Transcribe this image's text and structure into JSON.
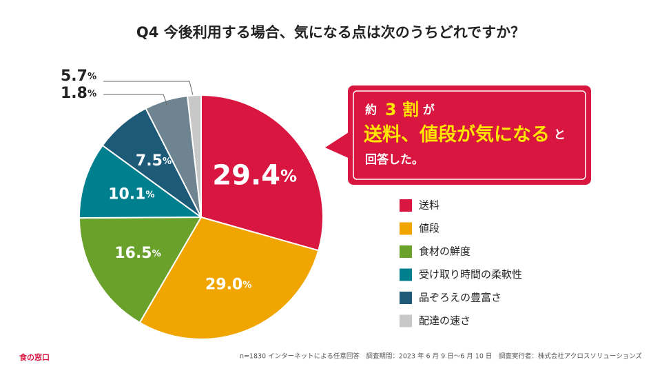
{
  "chart_data": {
    "type": "pie",
    "title": "Q4 今後利用する場合、気になる点は次のうちどれですか？",
    "categories": [
      "送料",
      "値段",
      "食材の鮮度",
      "受け取り時間の柔軟性",
      "品ぞろえの豊富さ",
      null,
      "配達の速さ"
    ],
    "values": [
      29.4,
      29.0,
      16.5,
      10.1,
      7.5,
      5.7,
      1.8
    ],
    "value_labels": [
      "29.4",
      "29.0",
      "16.5",
      "10.1",
      "7.5",
      "5.7",
      "1.8"
    ],
    "unit": "%",
    "colors": [
      "#d8163f",
      "#f0a500",
      "#6aa12a",
      "#00808f",
      "#1c5a78",
      "#6e8591",
      "#c8c8c8"
    ],
    "callout": [
      "約",
      "3 割",
      "が",
      "送料、値段が気になる",
      "と",
      "回答した。"
    ],
    "note": "n=1830 インターネットによる任意回答　調査期間：2023 年 6 月 9 日～6 月 10 日　調査実行者：株式会社アクロスソリューションズ",
    "brand": "食の窓口"
  }
}
